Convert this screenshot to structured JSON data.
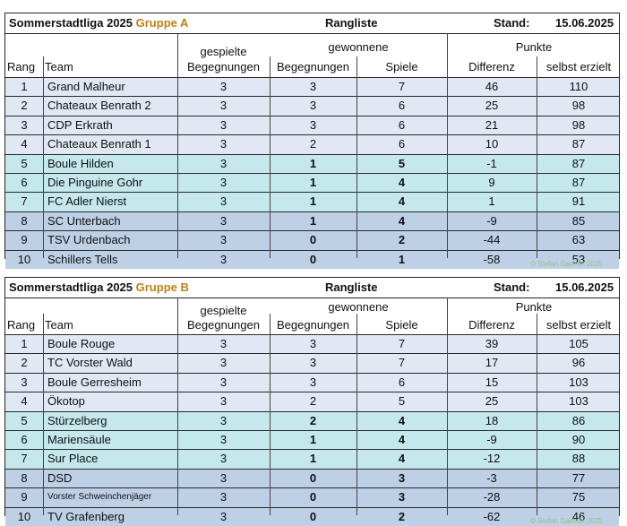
{
  "colors": {
    "header_group": "#c07f16",
    "row_light": "#dfe8f3",
    "row_teal": "#c4e8ec",
    "row_blue": "#bdd0e6",
    "copyright": "#9fbf7f"
  },
  "columns": {
    "rang": "Rang",
    "team": "Team",
    "gespielte_1": "gespielte",
    "gespielte_2": "Begegnungen",
    "gewonnene": "gewonnene",
    "gew_beg": "Begegnungen",
    "gew_spiele": "Spiele",
    "punkte": "Punkte",
    "differenz": "Differenz",
    "selbst": "selbst erzielt"
  },
  "groupA": {
    "league": "Sommerstadtliga 2025",
    "group": "Gruppe A",
    "title": "Rangliste",
    "stand_label": "Stand:",
    "date": "15.06.2025",
    "copyright": "© Stefan Gartner 2025",
    "rows": [
      {
        "rang": "1",
        "team": "Grand Malheur",
        "beg": "3",
        "gbeg": "3",
        "spiele": "7",
        "diff": "46",
        "pts": "110"
      },
      {
        "rang": "2",
        "team": "Chateaux Benrath 2",
        "beg": "3",
        "gbeg": "3",
        "spiele": "6",
        "diff": "25",
        "pts": "98"
      },
      {
        "rang": "3",
        "team": "CDP Erkrath",
        "beg": "3",
        "gbeg": "3",
        "spiele": "6",
        "diff": "21",
        "pts": "98"
      },
      {
        "rang": "4",
        "team": "Chateaux Benrath 1",
        "beg": "3",
        "gbeg": "2",
        "spiele": "6",
        "diff": "10",
        "pts": "87"
      },
      {
        "rang": "5",
        "team": "Boule Hilden",
        "beg": "3",
        "gbeg": "1",
        "spiele": "5",
        "diff": "-1",
        "pts": "87"
      },
      {
        "rang": "6",
        "team": "Die Pinguine Gohr",
        "beg": "3",
        "gbeg": "1",
        "spiele": "4",
        "diff": "9",
        "pts": "87"
      },
      {
        "rang": "7",
        "team": "FC Adler Nierst",
        "beg": "3",
        "gbeg": "1",
        "spiele": "4",
        "diff": "1",
        "pts": "91"
      },
      {
        "rang": "8",
        "team": "SC Unterbach",
        "beg": "3",
        "gbeg": "1",
        "spiele": "4",
        "diff": "-9",
        "pts": "85"
      },
      {
        "rang": "9",
        "team": "TSV Urdenbach",
        "beg": "3",
        "gbeg": "0",
        "spiele": "2",
        "diff": "-44",
        "pts": "63"
      },
      {
        "rang": "10",
        "team": "Schillers Tells",
        "beg": "3",
        "gbeg": "0",
        "spiele": "1",
        "diff": "-58",
        "pts": "53"
      }
    ]
  },
  "groupB": {
    "league": "Sommerstadtliga 2025",
    "group": "Gruppe B",
    "title": "Rangliste",
    "stand_label": "Stand:",
    "date": "15.06.2025",
    "copyright": "© Stefan Gartner 2025",
    "rows": [
      {
        "rang": "1",
        "team": "Boule Rouge",
        "beg": "3",
        "gbeg": "3",
        "spiele": "7",
        "diff": "39",
        "pts": "105"
      },
      {
        "rang": "2",
        "team": "TC Vorster Wald",
        "beg": "3",
        "gbeg": "3",
        "spiele": "7",
        "diff": "17",
        "pts": "96"
      },
      {
        "rang": "3",
        "team": "Boule Gerresheim",
        "beg": "3",
        "gbeg": "3",
        "spiele": "6",
        "diff": "15",
        "pts": "103"
      },
      {
        "rang": "4",
        "team": "Ökotop",
        "beg": "3",
        "gbeg": "2",
        "spiele": "5",
        "diff": "25",
        "pts": "103"
      },
      {
        "rang": "5",
        "team": "Stürzelberg",
        "beg": "3",
        "gbeg": "2",
        "spiele": "4",
        "diff": "18",
        "pts": "86"
      },
      {
        "rang": "6",
        "team": "Mariensäule",
        "beg": "3",
        "gbeg": "1",
        "spiele": "4",
        "diff": "-9",
        "pts": "90"
      },
      {
        "rang": "7",
        "team": "Sur Place",
        "beg": "3",
        "gbeg": "1",
        "spiele": "4",
        "diff": "-12",
        "pts": "88"
      },
      {
        "rang": "8",
        "team": "DSD",
        "beg": "3",
        "gbeg": "0",
        "spiele": "3",
        "diff": "-3",
        "pts": "77"
      },
      {
        "rang": "9",
        "team": "Vorster Schweinchenjäger",
        "beg": "3",
        "gbeg": "0",
        "spiele": "3",
        "diff": "-28",
        "pts": "75"
      },
      {
        "rang": "10",
        "team": "TV Grafenberg",
        "beg": "3",
        "gbeg": "0",
        "spiele": "2",
        "diff": "-62",
        "pts": "46"
      }
    ]
  }
}
